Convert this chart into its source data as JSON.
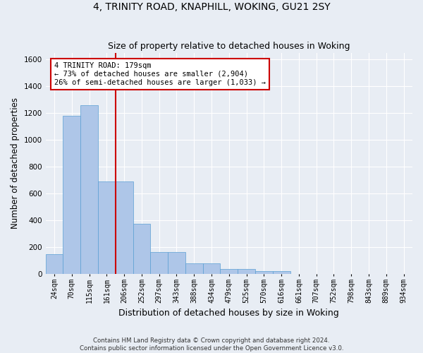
{
  "title": "4, TRINITY ROAD, KNAPHILL, WOKING, GU21 2SY",
  "subtitle": "Size of property relative to detached houses in Woking",
  "xlabel": "Distribution of detached houses by size in Woking",
  "ylabel": "Number of detached properties",
  "categories": [
    "24sqm",
    "70sqm",
    "115sqm",
    "161sqm",
    "206sqm",
    "252sqm",
    "297sqm",
    "343sqm",
    "388sqm",
    "434sqm",
    "479sqm",
    "525sqm",
    "570sqm",
    "616sqm",
    "661sqm",
    "707sqm",
    "752sqm",
    "798sqm",
    "843sqm",
    "889sqm",
    "934sqm"
  ],
  "values": [
    145,
    1180,
    1260,
    690,
    690,
    375,
    165,
    165,
    80,
    80,
    35,
    35,
    20,
    20,
    0,
    0,
    0,
    0,
    0,
    0,
    0
  ],
  "bar_color": "#aec6e8",
  "bar_edge_color": "#5a9fd4",
  "red_line_x": 3.5,
  "annotation_line1": "4 TRINITY ROAD: 179sqm",
  "annotation_line2": "← 73% of detached houses are smaller (2,904)",
  "annotation_line3": "26% of semi-detached houses are larger (1,033) →",
  "annotation_box_color": "#ffffff",
  "annotation_border_color": "#cc0000",
  "ylim": [
    0,
    1650
  ],
  "yticks": [
    0,
    200,
    400,
    600,
    800,
    1000,
    1200,
    1400,
    1600
  ],
  "background_color": "#e8edf4",
  "grid_color": "#ffffff",
  "footer_line1": "Contains HM Land Registry data © Crown copyright and database right 2024.",
  "footer_line2": "Contains public sector information licensed under the Open Government Licence v3.0.",
  "title_fontsize": 10,
  "subtitle_fontsize": 9,
  "axis_label_fontsize": 8.5,
  "tick_fontsize": 7
}
